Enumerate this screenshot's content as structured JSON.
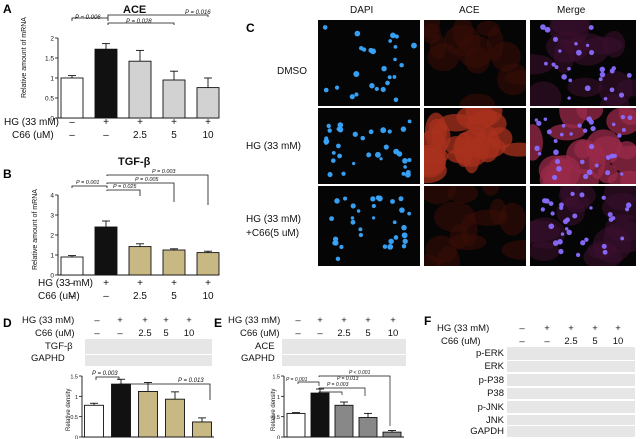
{
  "panel_letters": {
    "A": "A",
    "B": "B",
    "C": "C",
    "D": "D",
    "E": "E",
    "F": "F"
  },
  "conditions": {
    "hg_label": "HG (33 mM)",
    "c66_label": "C66 (uM)",
    "hg_values": [
      "–",
      "+",
      "+",
      "+",
      "+"
    ],
    "c66_values": [
      "–",
      "–",
      "2.5",
      "5",
      "10"
    ]
  },
  "panel_a": {
    "title": "ACE",
    "ylabel": "Relative amount of mRNA",
    "yticks": [
      "0",
      "0.5",
      "1",
      "1.5",
      "2"
    ],
    "p_values": [
      "P = 0.006",
      "P = 0.028",
      "P = 0.016"
    ]
  },
  "panel_b": {
    "title": "TGF-β",
    "ylabel": "Relative amount of mRNA",
    "yticks": [
      "0",
      "1",
      "2",
      "3",
      "4"
    ],
    "p_values": [
      "P = 0.001",
      "P = 0.025",
      "P = 0.005",
      "P = 0.003"
    ]
  },
  "panel_c": {
    "columns": [
      "DAPI",
      "ACE",
      "Merge"
    ],
    "rows": [
      "DMSO",
      "HG (33 mM)",
      "HG (33 mM)",
      "+C66(5 uM)"
    ]
  },
  "panel_d": {
    "blots": [
      "TGF-β",
      "GAPHD"
    ],
    "ylabel": "Relative density",
    "yticks": [
      "0",
      "0.5",
      "1",
      "1.5"
    ],
    "p_values": [
      "P = 0.003",
      "P = 0.013"
    ]
  },
  "panel_e": {
    "blots": [
      "ACE",
      "GAPHD"
    ],
    "ylabel": "Relative density",
    "yticks": [
      "0",
      "0.5",
      "1",
      "1.5"
    ],
    "p_values": [
      "P = 0.001",
      "P = 0.013",
      "P = 0.003",
      "P < 0.001"
    ]
  },
  "panel_f": {
    "blots": [
      "p-ERK",
      "ERK",
      "p-P38",
      "P38",
      "p-JNK",
      "JNK",
      "GAPDH"
    ]
  },
  "chart_data": [
    {
      "type": "bar",
      "panel": "A",
      "title": "ACE",
      "ylabel": "Relative amount of mRNA",
      "categories": [
        "1",
        "2",
        "3",
        "4",
        "5"
      ],
      "values": [
        1.0,
        1.72,
        1.42,
        0.95,
        0.76
      ],
      "errors": [
        0.06,
        0.14,
        0.27,
        0.22,
        0.24
      ],
      "ylim": [
        0,
        2
      ],
      "colors": [
        "#ffffff",
        "#111111",
        "#d2d2d2",
        "#d2d2d2",
        "#d2d2d2"
      ]
    },
    {
      "type": "bar",
      "panel": "B",
      "title": "TGF-β",
      "ylabel": "Relative amount of mRNA",
      "categories": [
        "1",
        "2",
        "3",
        "4",
        "5"
      ],
      "values": [
        0.9,
        2.4,
        1.42,
        1.25,
        1.12
      ],
      "errors": [
        0.07,
        0.3,
        0.14,
        0.06,
        0.07
      ],
      "ylim": [
        0,
        4
      ],
      "colors": [
        "#ffffff",
        "#111111",
        "#c8b883",
        "#c8b883",
        "#c8b883"
      ]
    },
    {
      "type": "bar",
      "panel": "D",
      "ylabel": "Relative density",
      "categories": [
        "1",
        "2",
        "3",
        "4",
        "5"
      ],
      "values": [
        0.78,
        1.3,
        1.12,
        0.93,
        0.37
      ],
      "errors": [
        0.05,
        0.12,
        0.22,
        0.18,
        0.1
      ],
      "ylim": [
        0,
        1.5
      ],
      "colors": [
        "#ffffff",
        "#111111",
        "#c8b883",
        "#c8b883",
        "#c8b883"
      ]
    },
    {
      "type": "bar",
      "panel": "E",
      "ylabel": "Relative density",
      "categories": [
        "1",
        "2",
        "3",
        "4",
        "5"
      ],
      "values": [
        0.58,
        1.08,
        0.78,
        0.48,
        0.12
      ],
      "errors": [
        0.02,
        0.1,
        0.08,
        0.1,
        0.04
      ],
      "ylim": [
        0,
        1.5
      ],
      "colors": [
        "#ffffff",
        "#111111",
        "#888888",
        "#888888",
        "#888888"
      ]
    }
  ]
}
